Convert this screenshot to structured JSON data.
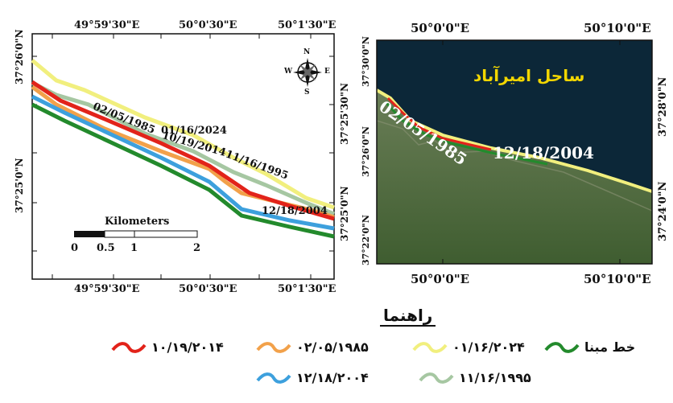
{
  "left_map": {
    "top_ticks": [
      "49°59'30\"E",
      "50°0'30\"E",
      "50°1'30\"E"
    ],
    "bottom_ticks": [
      "49°59'30\"E",
      "50°0'30\"E",
      "50°1'30\"E"
    ],
    "left_ticks": [
      "37°26'0\"N",
      "37°25'0\"N"
    ],
    "right_ticks": [
      "37°25'30\"N",
      "37°25'0\"N"
    ],
    "date_labels": [
      "02/05/1985",
      "01/16/2024",
      "10/19/2014",
      "11/16/1995",
      "12/18/2004"
    ],
    "scalebar": {
      "title": "Kilometers",
      "labels": [
        "0",
        "0.5",
        "1",
        "2"
      ]
    },
    "north_arrow": {
      "n": "N",
      "s": "S",
      "e": "E",
      "w": "W"
    },
    "colors": {
      "yellow": "#f1ef7e",
      "orange": "#f2a14a",
      "red": "#e2231a",
      "blue": "#3da0dd",
      "gray": "#a6c7a2",
      "green": "#238a2c"
    }
  },
  "right_map": {
    "top_ticks": [
      "50°0'0\"E",
      "50°10'0\"E"
    ],
    "bottom_ticks": [
      "50°0'0\"E",
      "50°10'0\"E"
    ],
    "right_ticks": [
      "37°28'0\"N",
      "37°24'0\"N"
    ],
    "left_ticks": [
      "37°30'0\"N",
      "37°26'0\"N",
      "37°22'0\"N"
    ],
    "place_name": "ساحل امیرآباد",
    "date_labels": [
      "02/05/1985",
      "12/18/2004"
    ],
    "colors": {
      "sea": "#0c2738",
      "land": "#4d6a39",
      "place_name": "#f2d600"
    }
  },
  "legend": {
    "title": "راهنما",
    "items": [
      {
        "label": "خط مبنا",
        "color": "#238a2c"
      },
      {
        "label": "۰۱/۱۶/۲۰۲۴",
        "color": "#f1ef7e"
      },
      {
        "label": "۰۲/۰۵/۱۹۸۵",
        "color": "#f2a14a"
      },
      {
        "label": "۱۰/۱۹/۲۰۱۴",
        "color": "#e2231a"
      },
      {
        "label": "۱۱/۱۶/۱۹۹۵",
        "color": "#a6c7a2"
      },
      {
        "label": "۱۲/۱۸/۲۰۰۴",
        "color": "#3da0dd"
      }
    ]
  }
}
